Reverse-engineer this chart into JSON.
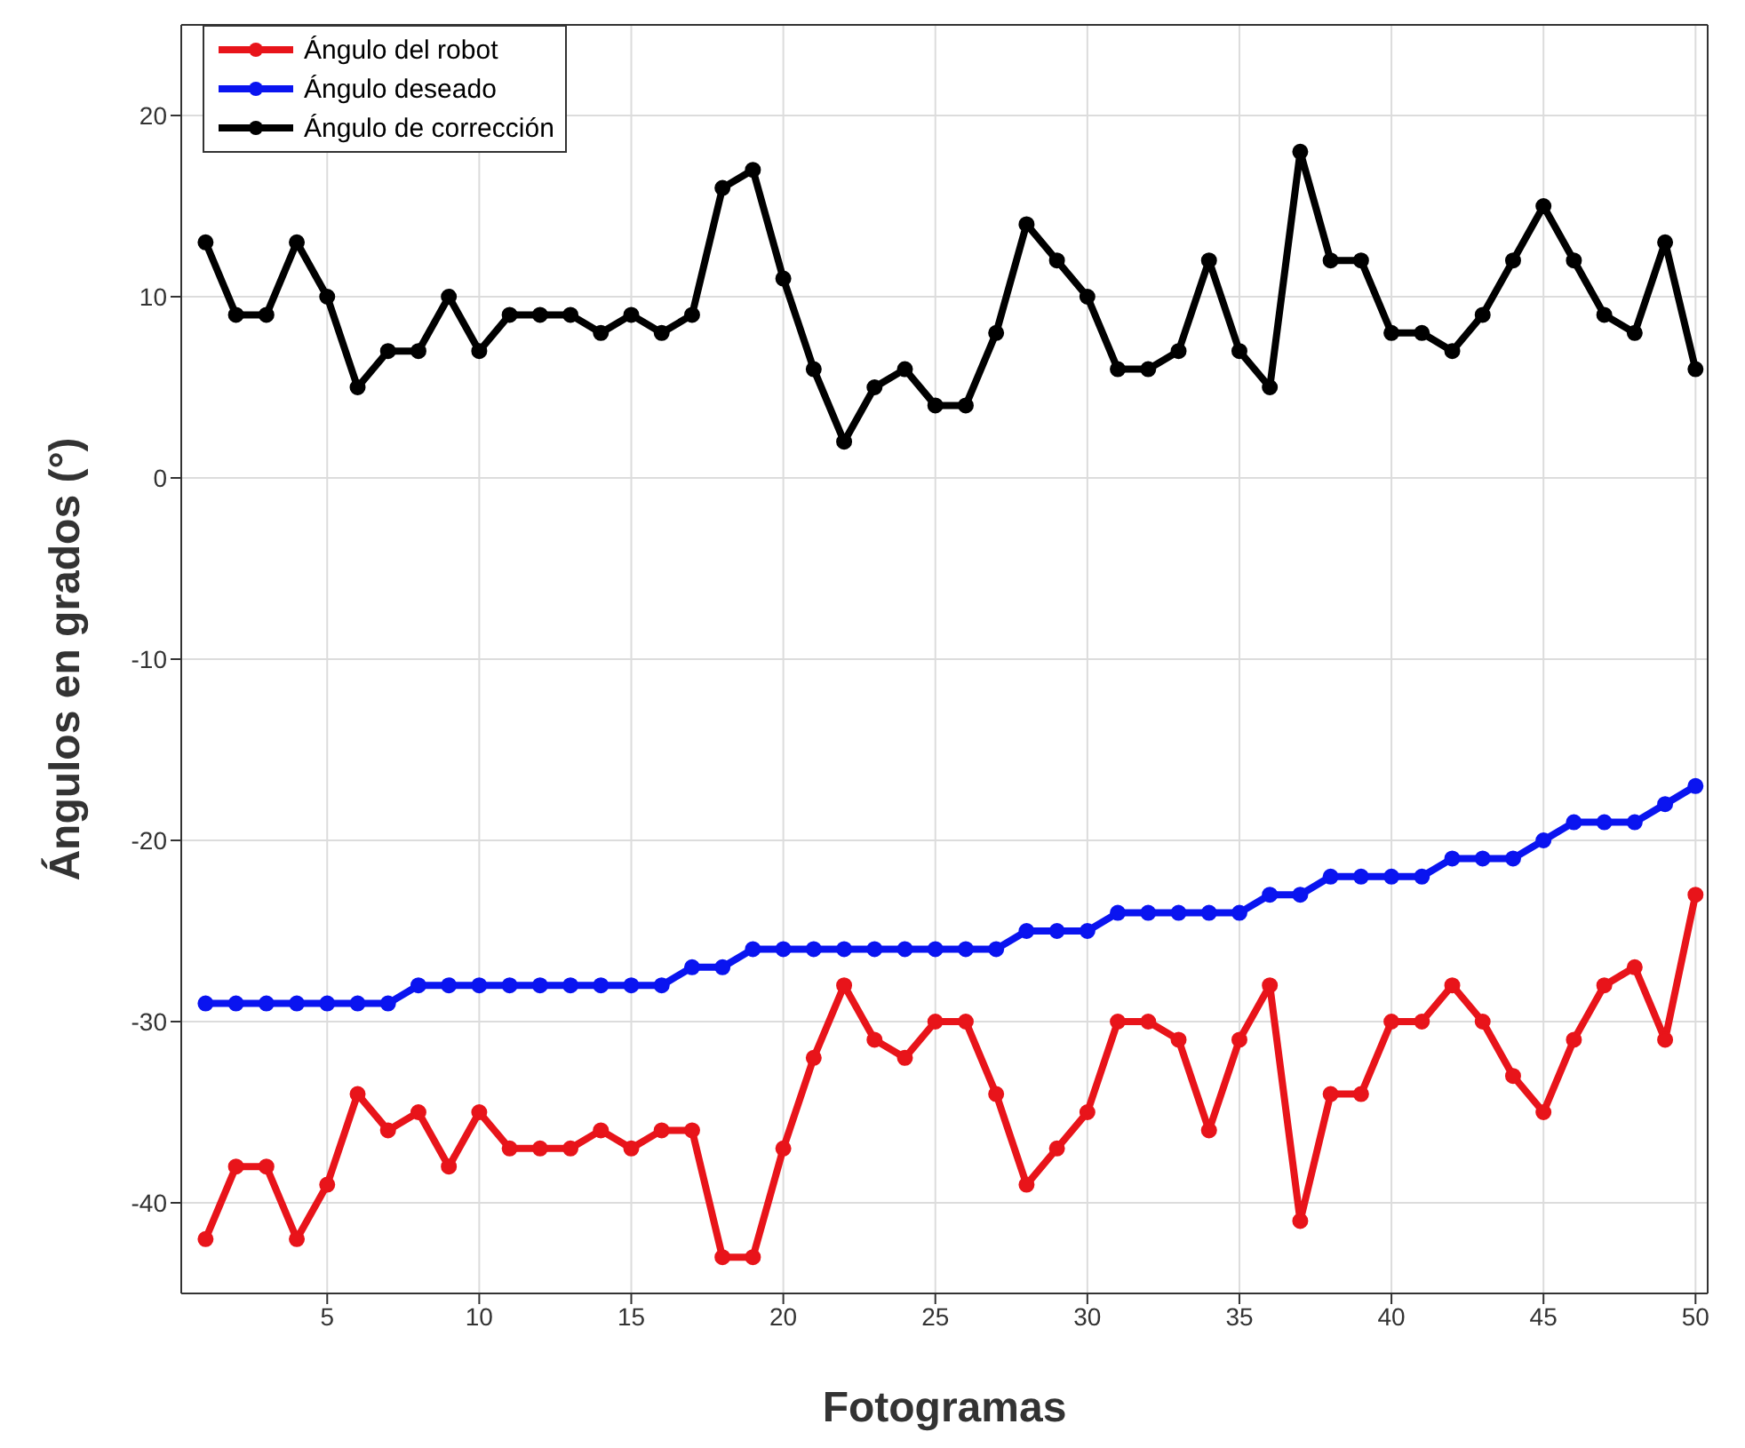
{
  "chart_data": {
    "type": "line",
    "xlabel": "Fotogramas",
    "ylabel": "Ángulos en grados (°)",
    "x": [
      1,
      2,
      3,
      4,
      5,
      6,
      7,
      8,
      9,
      10,
      11,
      12,
      13,
      14,
      15,
      16,
      17,
      18,
      19,
      20,
      21,
      22,
      23,
      24,
      25,
      26,
      27,
      28,
      29,
      30,
      31,
      32,
      33,
      34,
      35,
      36,
      37,
      38,
      39,
      40,
      41,
      42,
      43,
      44,
      45,
      46,
      47,
      48,
      49,
      50
    ],
    "series": [
      {
        "name": "Ángulo del robot",
        "color": "#e8141a",
        "values": [
          -42,
          -38,
          -38,
          -42,
          -39,
          -34,
          -36,
          -35,
          -38,
          -35,
          -37,
          -37,
          -37,
          -36,
          -37,
          -36,
          -36,
          -43,
          -43,
          -37,
          -32,
          -28,
          -31,
          -32,
          -30,
          -30,
          -34,
          -39,
          -37,
          -35,
          -30,
          -30,
          -31,
          -36,
          -31,
          -28,
          -41,
          -34,
          -34,
          -30,
          -30,
          -28,
          -30,
          -33,
          -35,
          -31,
          -28,
          -27,
          -31,
          -23
        ]
      },
      {
        "name": "Ángulo deseado",
        "color": "#0a14f0",
        "values": [
          -29,
          -29,
          -29,
          -29,
          -29,
          -29,
          -29,
          -28,
          -28,
          -28,
          -28,
          -28,
          -28,
          -28,
          -28,
          -28,
          -27,
          -27,
          -26,
          -26,
          -26,
          -26,
          -26,
          -26,
          -26,
          -26,
          -26,
          -25,
          -25,
          -25,
          -24,
          -24,
          -24,
          -24,
          -24,
          -23,
          -23,
          -22,
          -22,
          -22,
          -22,
          -21,
          -21,
          -21,
          -20,
          -19,
          -19,
          -19,
          -18,
          -17
        ]
      },
      {
        "name": "Ángulo de corrección",
        "color": "#000000",
        "values": [
          13,
          9,
          9,
          13,
          10,
          5,
          7,
          7,
          10,
          7,
          9,
          9,
          9,
          8,
          9,
          8,
          9,
          16,
          17,
          11,
          6,
          2,
          5,
          6,
          4,
          4,
          8,
          14,
          12,
          10,
          6,
          6,
          7,
          12,
          7,
          5,
          18,
          12,
          12,
          8,
          8,
          7,
          9,
          12,
          15,
          12,
          9,
          8,
          13,
          6
        ]
      }
    ],
    "xlim": [
      0.2,
      50.4
    ],
    "xticks": [
      5,
      10,
      15,
      20,
      25,
      30,
      35,
      40,
      45,
      50
    ],
    "ylim": [
      -45,
      25
    ],
    "yticks": [
      -40,
      -30,
      -20,
      -10,
      0,
      10,
      20
    ],
    "grid": true,
    "legend": "top left",
    "marker": "circle",
    "line_style": "solid"
  }
}
